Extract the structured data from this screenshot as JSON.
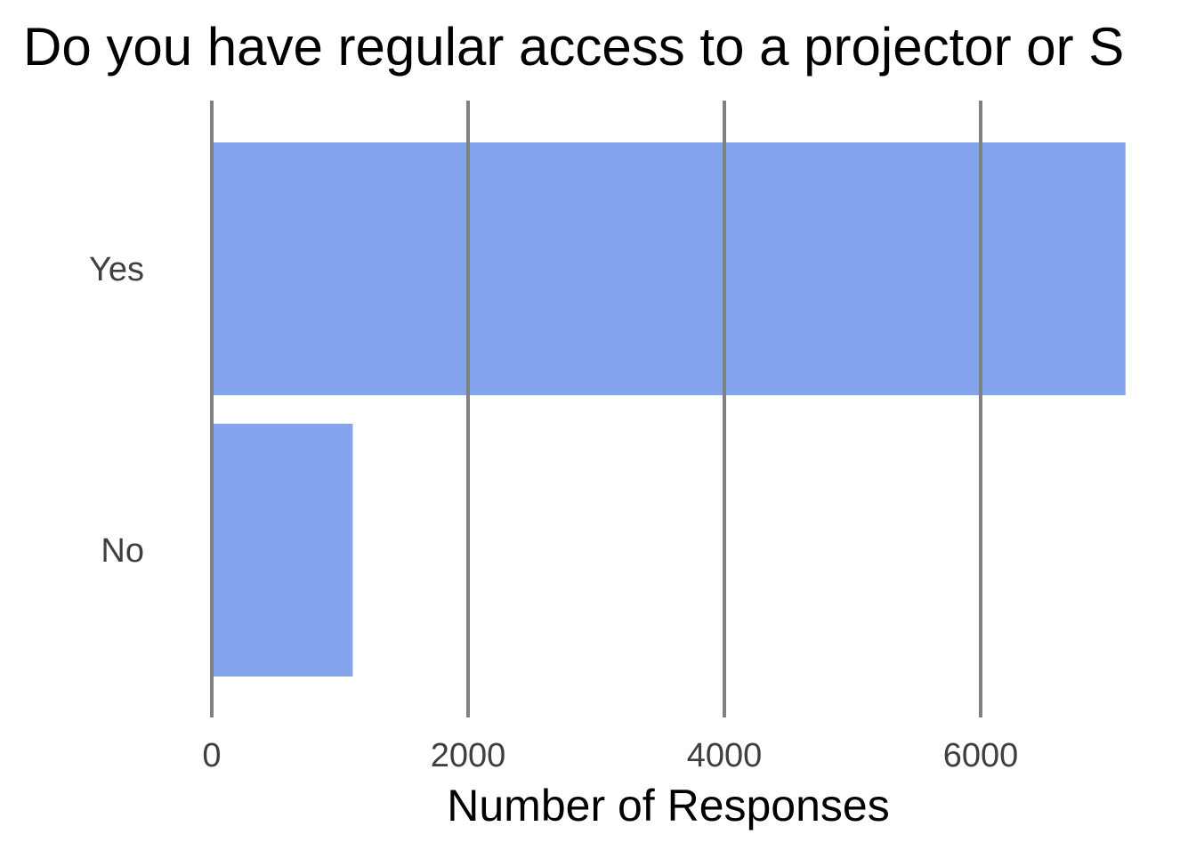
{
  "chart_data": {
    "type": "bar",
    "orientation": "horizontal",
    "title": "Do you have regular access to a projector or S",
    "categories": [
      "Yes",
      "No"
    ],
    "values": [
      7130,
      1100
    ],
    "xlabel": "Number of Responses",
    "ylabel": "",
    "xlim": [
      0,
      7130
    ],
    "xticks": [
      0,
      2000,
      4000,
      6000
    ],
    "xtick_labels": [
      "0",
      "2000",
      "4000",
      "6000"
    ],
    "grid": "vertical",
    "legend": "none",
    "bar_color": "#6d93e9",
    "bar_opacity": 0.85,
    "gridline_color": "#808080"
  }
}
